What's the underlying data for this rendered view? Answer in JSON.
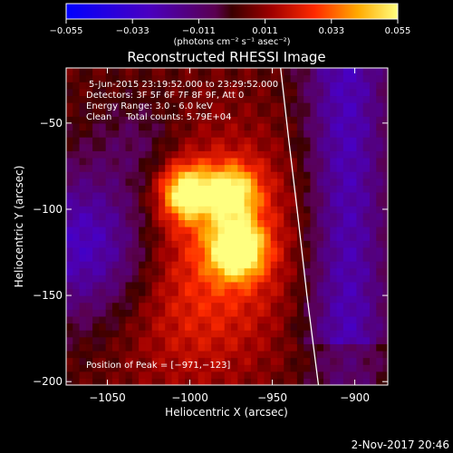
{
  "chart_data": {
    "type": "heatmap",
    "title": "Reconstructed RHESSI Image",
    "xlabel": "Heliocentric X (arcsec)",
    "ylabel": "Heliocentric Y (arcsec)",
    "xlim": [
      -1075,
      -880
    ],
    "ylim": [
      -202,
      -18
    ],
    "x_ticks": [
      -1050,
      -1000,
      -950,
      -900
    ],
    "x_tick_labels": [
      "−1050",
      "−1000",
      "−950",
      "−900"
    ],
    "y_ticks": [
      -50,
      -100,
      -150,
      -200
    ],
    "y_tick_labels": [
      "−50",
      "−100",
      "−150",
      "−200"
    ],
    "colorbar": {
      "range": [
        -0.055,
        0.055
      ],
      "ticks": [
        -0.055,
        -0.033,
        -0.011,
        0.011,
        0.033,
        0.055
      ],
      "tick_labels": [
        "−0.055",
        "−0.033",
        "−0.011",
        "0.011",
        "0.033",
        "0.055"
      ],
      "units_label": "(photons cm⁻² s⁻¹ asec⁻²)"
    },
    "info_lines": [
      "5-Jun-2015 23:19:52.000 to 23:29:52.000",
      "Detectors: 3F 5F 6F 7F 8F 9F, Att 0",
      "Energy Range: 3.0 - 6.0 keV",
      "Clean     Total counts: 5.79E+04"
    ],
    "peak_label": "Position of Peak = [−971,−123]",
    "peak_position": [
      -971,
      -123
    ],
    "sources": [
      {
        "x": -1002,
        "y": -90,
        "peak": 0.047
      },
      {
        "x": -974,
        "y": -90,
        "peak": 0.04
      },
      {
        "x": -971,
        "y": -123,
        "peak": 0.055
      }
    ],
    "limb_arc": [
      [
        -945,
        -18
      ],
      [
        -940,
        -60
      ],
      [
        -935,
        -100
      ],
      [
        -929,
        -150
      ],
      [
        -922,
        -202
      ]
    ],
    "timestamp": "2-Nov-2017 20:46"
  }
}
